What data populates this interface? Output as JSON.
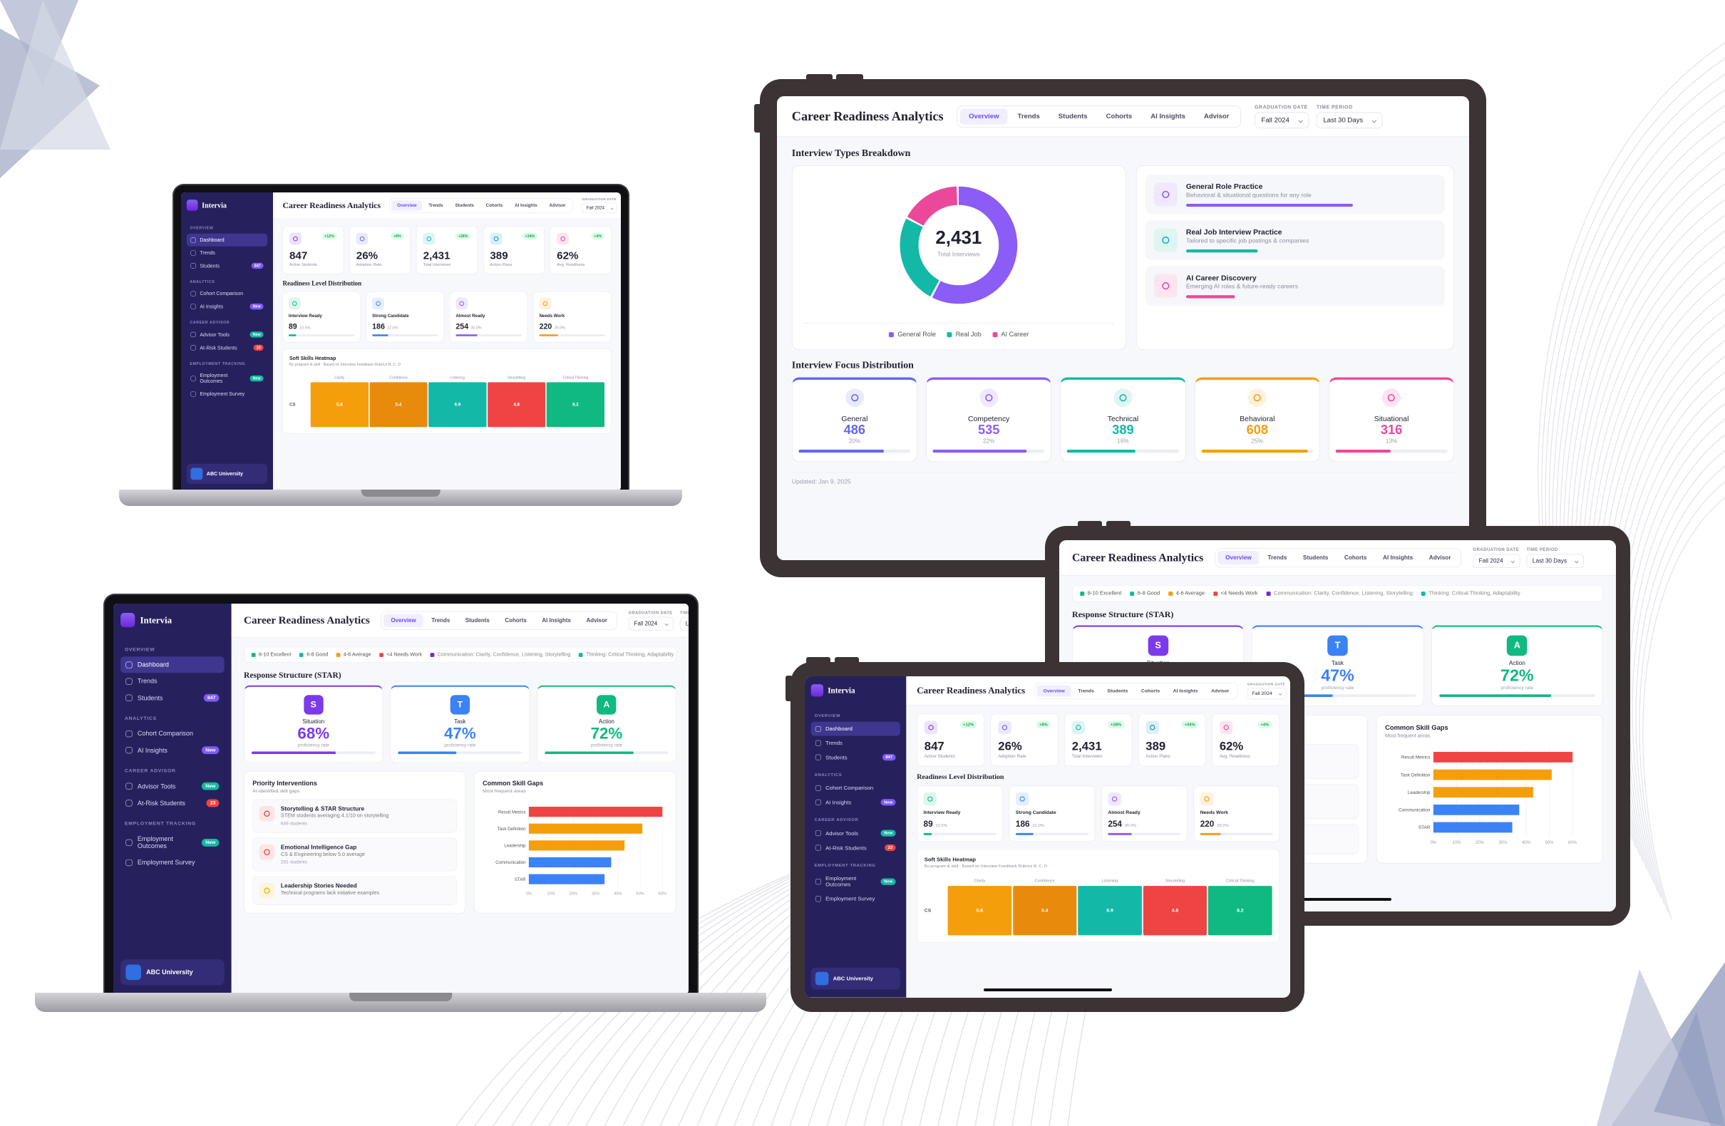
{
  "brand": "Intervia",
  "sidebar": {
    "sections": [
      {
        "title": "OVERVIEW",
        "items": [
          {
            "label": "Dashboard"
          },
          {
            "label": "Trends"
          },
          {
            "label": "Students",
            "badge": "847",
            "badge_color": "#7c5cf5"
          }
        ]
      },
      {
        "title": "ANALYTICS",
        "items": [
          {
            "label": "Cohort Comparison"
          },
          {
            "label": "AI Insights",
            "badge": "New",
            "badge_color": "#7c5cf5"
          }
        ]
      },
      {
        "title": "CAREER ADVISOR",
        "items": [
          {
            "label": "Advisor Tools",
            "badge": "New",
            "badge_color": "#14b8a6"
          },
          {
            "label": "At-Risk Students",
            "badge": "23",
            "badge_color": "#ef4444"
          }
        ]
      },
      {
        "title": "EMPLOYMENT TRACKING",
        "items": [
          {
            "label": "Employment Outcomes",
            "badge": "New",
            "badge_color": "#14b8a6"
          },
          {
            "label": "Employment Survey"
          }
        ]
      }
    ],
    "org": "ABC University"
  },
  "header": {
    "title": "Career Readiness Analytics",
    "tabs": [
      "Overview",
      "Trends",
      "Students",
      "Cohorts",
      "AI Insights",
      "Advisor"
    ],
    "filters": [
      {
        "label": "GRADUATION DATE",
        "value": "Fall 2024"
      },
      {
        "label": "TIME PERIOD",
        "value": "Last 30 Days"
      }
    ]
  },
  "legend": {
    "levels": [
      {
        "label": "8-10 Excellent",
        "color": "#10b981"
      },
      {
        "label": "6-8 Good",
        "color": "#14b8a6"
      },
      {
        "label": "4-6 Average",
        "color": "#f59e0b"
      },
      {
        "label": "<4 Needs Work",
        "color": "#ef4444"
      }
    ],
    "groups": [
      {
        "label": "Communication: Clarity, Confidence, Listening, Storytelling",
        "color": "#6d28d9"
      },
      {
        "label": "Thinking: Critical Thinking, Adaptability",
        "color": "#14b8a6"
      }
    ]
  },
  "kpis": [
    {
      "value": "847",
      "label": "Active Students",
      "change": "+12%",
      "color": "#7c3aed"
    },
    {
      "value": "26%",
      "label": "Adoption Rate",
      "change": "+8%",
      "color": "#6366f1"
    },
    {
      "value": "2,431",
      "label": "Total Interviews",
      "change": "+28%",
      "color": "#14b8a6"
    },
    {
      "value": "389",
      "label": "Action Plans",
      "change": "+34%",
      "color": "#0891b2"
    },
    {
      "value": "62%",
      "label": "Avg. Readiness",
      "change": "+4%",
      "color": "#ec4899"
    }
  ],
  "readiness": {
    "title": "Readiness Level Distribution",
    "items": [
      {
        "label": "Interview Ready",
        "count": 89,
        "pct": "10.5%",
        "color": "#10b981"
      },
      {
        "label": "Strong Candidate",
        "count": 186,
        "pct": "22.0%",
        "color": "#3b82f6"
      },
      {
        "label": "Almost Ready",
        "count": 254,
        "pct": "30.0%",
        "color": "#8b5cf6"
      },
      {
        "label": "Needs Work",
        "count": 220,
        "pct": "26.0%",
        "color": "#f59e0b"
      }
    ]
  },
  "heatmap": {
    "title": "Soft Skills Heatmap",
    "subtitle": "By program & skill · Based on Interview Feedback Rubrics B, C, D",
    "columns": [
      "Clarity",
      "Confidence",
      "Listening",
      "Storytelling",
      "Critical Thinking"
    ],
    "rows": [
      {
        "label": "CS",
        "values": [
          5.8,
          5.4,
          6.9,
          4.8,
          8.2
        ],
        "colors": [
          "#f59e0b",
          "#e88a0c",
          "#14b8a6",
          "#ef4444",
          "#10b981"
        ]
      }
    ]
  },
  "interview_types": {
    "title": "Interview Types Breakdown",
    "total": "2,431",
    "total_label": "Total Interviews",
    "legend": [
      {
        "label": "General Role",
        "color": "#8b5cf6",
        "value": 58
      },
      {
        "label": "Real Job",
        "color": "#14b8a6",
        "value": 25
      },
      {
        "label": "AI Career",
        "color": "#ec4899",
        "value": 17
      }
    ],
    "items": [
      {
        "title": "General Role Practice",
        "desc": "Behavioral & situational questions for any role"
      },
      {
        "title": "Real Job Interview Practice",
        "desc": "Tailored to specific job postings & companies"
      },
      {
        "title": "AI Career Discovery",
        "desc": "Emerging AI roles & future-ready careers"
      }
    ]
  },
  "focus": {
    "title": "Interview Focus Distribution",
    "items": [
      {
        "name": "General",
        "count": 486,
        "pct": "20%",
        "color": "#6366f1"
      },
      {
        "name": "Competency",
        "count": 535,
        "pct": "22%",
        "color": "#8b5cf6"
      },
      {
        "name": "Technical",
        "count": 389,
        "pct": "16%",
        "color": "#14b8a6"
      },
      {
        "name": "Behavioral",
        "count": 608,
        "pct": "25%",
        "color": "#f59e0b"
      },
      {
        "name": "Situational",
        "count": 316,
        "pct": "13%",
        "color": "#ec4899"
      }
    ]
  },
  "star": {
    "title": "Response Structure (STAR)",
    "items": [
      {
        "letter": "S",
        "name": "Situation",
        "pct": "68%",
        "sub": "proficiency rate",
        "color": "#7c3aed"
      },
      {
        "letter": "T",
        "name": "Task",
        "pct": "47%",
        "sub": "proficiency rate",
        "color": "#3b82f6"
      },
      {
        "letter": "A",
        "name": "Action",
        "pct": "72%",
        "sub": "proficiency rate",
        "color": "#10b981"
      }
    ]
  },
  "priority": {
    "title": "Priority Interventions",
    "subtitle": "AI-identified skill gaps",
    "items": [
      {
        "title": "Storytelling & STAR Structure",
        "desc": "STEM students averaging 4.1/10 on storytelling",
        "count": "649 students",
        "color": "#ef4444"
      },
      {
        "title": "Emotional Intelligence Gap",
        "desc": "CS & Engineering below 5.0 average",
        "count": "291 students",
        "color": "#ef4444"
      },
      {
        "title": "Leadership Stories Needed",
        "desc": "Technical programs lack initiative examples",
        "color": "#eab308"
      }
    ]
  },
  "skill_gaps": {
    "title": "Common Skill Gaps",
    "subtitle": "Most frequent areas",
    "categories": [
      "Result Metrics",
      "Task Definition",
      "Leadership",
      "Communication",
      "STAR"
    ],
    "values": [
      60,
      51,
      43,
      37,
      34
    ],
    "colors": [
      "#ef4444",
      "#f59e0b",
      "#f59e0b",
      "#3b82f6",
      "#3b82f6"
    ],
    "xlim": [
      0,
      60
    ],
    "xticks": [
      {
        "value": 0,
        "label": "0%"
      },
      {
        "value": 10,
        "label": "10%"
      },
      {
        "value": 20,
        "label": "20%"
      },
      {
        "value": 30,
        "label": "30%"
      },
      {
        "value": 40,
        "label": "40%"
      },
      {
        "value": 50,
        "label": "50%"
      },
      {
        "value": 60,
        "label": "60%"
      }
    ]
  },
  "updated": "Updated: Jan 9, 2025"
}
